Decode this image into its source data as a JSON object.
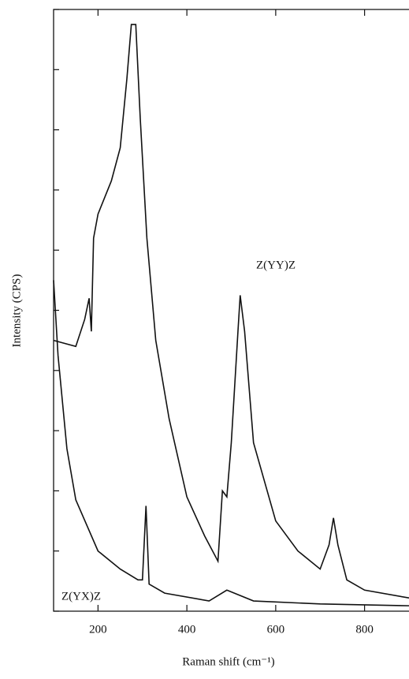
{
  "chart_data": {
    "type": "line",
    "x_label": "Raman shift (cm⁻¹)",
    "y_label": "Intensity (CPS)",
    "xlim": [
      100,
      900
    ],
    "xticks": [
      200,
      400,
      600,
      800
    ],
    "ylim": [
      0,
      10
    ],
    "yticks": [
      0,
      1,
      2,
      3,
      4,
      5,
      6,
      7,
      8,
      9,
      10
    ],
    "series": [
      {
        "name": "Z(YY)Z",
        "color": "#111111",
        "x": [
          100,
          150,
          170,
          180,
          185,
          190,
          200,
          230,
          250,
          265,
          275,
          285,
          295,
          310,
          330,
          360,
          400,
          440,
          470,
          480,
          490,
          500,
          515,
          520,
          530,
          550,
          600,
          650,
          700,
          720,
          730,
          740,
          760,
          800,
          900
        ],
        "values": [
          4.5,
          4.4,
          4.85,
          5.2,
          4.65,
          6.2,
          6.6,
          7.15,
          7.7,
          8.85,
          9.75,
          9.75,
          8.2,
          6.2,
          4.5,
          3.2,
          1.9,
          1.25,
          0.83,
          2.0,
          1.9,
          2.8,
          4.65,
          5.25,
          4.65,
          2.8,
          1.5,
          1.0,
          0.7,
          1.1,
          1.55,
          1.1,
          0.52,
          0.35,
          0.22
        ]
      },
      {
        "name": "Z(YX)Z",
        "color": "#111111",
        "x": [
          100,
          110,
          130,
          150,
          200,
          250,
          290,
          300,
          308,
          315,
          350,
          450,
          490,
          550,
          700,
          900
        ],
        "values": [
          5.5,
          4.25,
          2.7,
          1.85,
          1.0,
          0.7,
          0.52,
          0.52,
          1.75,
          0.45,
          0.3,
          0.17,
          0.35,
          0.17,
          0.12,
          0.09
        ]
      }
    ]
  }
}
